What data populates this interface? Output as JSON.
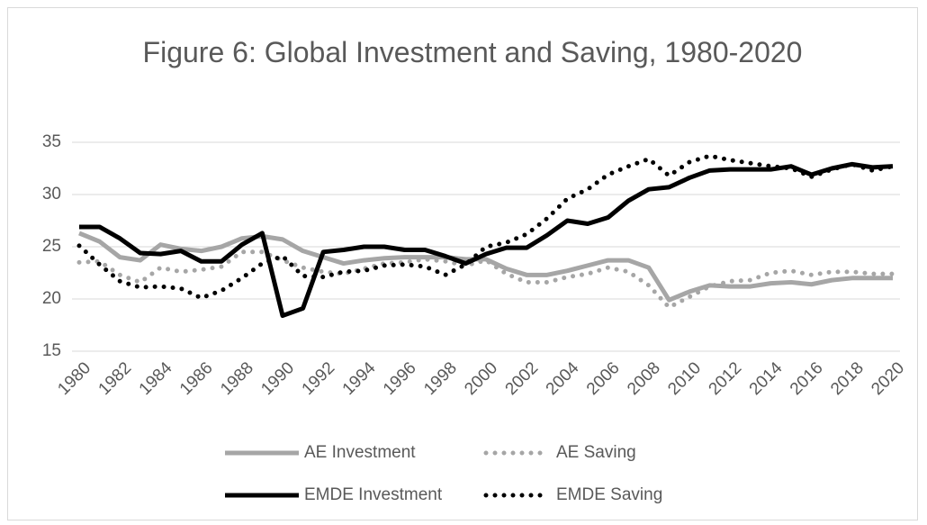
{
  "chart_data": {
    "type": "line",
    "title": "Figure 6: Global Investment and Saving, 1980-2020",
    "x": [
      1980,
      1981,
      1982,
      1983,
      1984,
      1985,
      1986,
      1987,
      1988,
      1989,
      1990,
      1991,
      1992,
      1993,
      1994,
      1995,
      1996,
      1997,
      1998,
      1999,
      2000,
      2001,
      2002,
      2003,
      2004,
      2005,
      2006,
      2007,
      2008,
      2009,
      2010,
      2011,
      2012,
      2013,
      2014,
      2015,
      2016,
      2017,
      2018,
      2019,
      2020
    ],
    "xlim": [
      1980,
      2020
    ],
    "xticks": [
      1980,
      1982,
      1984,
      1986,
      1988,
      1990,
      1992,
      1994,
      1996,
      1998,
      2000,
      2002,
      2004,
      2006,
      2008,
      2010,
      2012,
      2014,
      2016,
      2018,
      2020
    ],
    "ylim": [
      15,
      35
    ],
    "yticks": [
      15,
      20,
      25,
      30,
      35
    ],
    "grid": true,
    "legend": "bottom",
    "series": [
      {
        "name": "AE Investment",
        "color": "#a6a6a6",
        "style": "solid",
        "values": [
          26.3,
          25.5,
          24.0,
          23.7,
          25.2,
          24.8,
          24.6,
          25.0,
          25.8,
          26.0,
          25.7,
          24.6,
          24.0,
          23.4,
          23.7,
          23.9,
          24.0,
          24.0,
          24.0,
          23.8,
          23.8,
          22.9,
          22.3,
          22.3,
          22.7,
          23.2,
          23.7,
          23.7,
          23.0,
          19.9,
          20.7,
          21.3,
          21.2,
          21.2,
          21.5,
          21.6,
          21.4,
          21.8,
          22.0,
          22.0,
          22.0
        ]
      },
      {
        "name": "AE Saving",
        "color": "#a6a6a6",
        "style": "dotted",
        "values": [
          23.5,
          23.6,
          22.3,
          21.6,
          23.0,
          22.6,
          22.8,
          23.1,
          24.5,
          24.5,
          23.7,
          23.0,
          22.6,
          22.4,
          22.9,
          23.4,
          23.5,
          23.8,
          23.6,
          23.2,
          23.7,
          22.4,
          21.6,
          21.6,
          22.1,
          22.4,
          23.0,
          22.6,
          21.3,
          19.2,
          20.2,
          21.2,
          21.7,
          21.8,
          22.5,
          22.7,
          22.3,
          22.6,
          22.6,
          22.4,
          22.4
        ]
      },
      {
        "name": "EMDE Investment",
        "color": "#000000",
        "style": "solid",
        "values": [
          26.9,
          26.9,
          25.8,
          24.4,
          24.3,
          24.6,
          23.6,
          23.6,
          25.2,
          26.3,
          18.4,
          19.1,
          24.5,
          24.7,
          25.0,
          25.0,
          24.7,
          24.7,
          24.1,
          23.4,
          24.3,
          24.9,
          24.9,
          26.1,
          27.5,
          27.2,
          27.8,
          29.4,
          30.5,
          30.7,
          31.6,
          32.3,
          32.4,
          32.4,
          32.4,
          32.7,
          31.9,
          32.5,
          32.9,
          32.6,
          32.7
        ]
      },
      {
        "name": "EMDE Saving",
        "color": "#000000",
        "style": "dotted",
        "values": [
          25.1,
          23.3,
          21.7,
          21.1,
          21.2,
          21.0,
          20.1,
          20.8,
          22.0,
          23.4,
          24.1,
          22.2,
          22.1,
          22.6,
          22.7,
          23.2,
          23.3,
          23.1,
          22.3,
          23.3,
          25.0,
          25.4,
          26.2,
          27.7,
          29.6,
          30.5,
          31.9,
          32.7,
          33.4,
          31.8,
          33.1,
          33.7,
          33.3,
          33.0,
          32.7,
          32.5,
          31.7,
          32.4,
          32.9,
          32.3,
          32.7
        ]
      }
    ]
  }
}
